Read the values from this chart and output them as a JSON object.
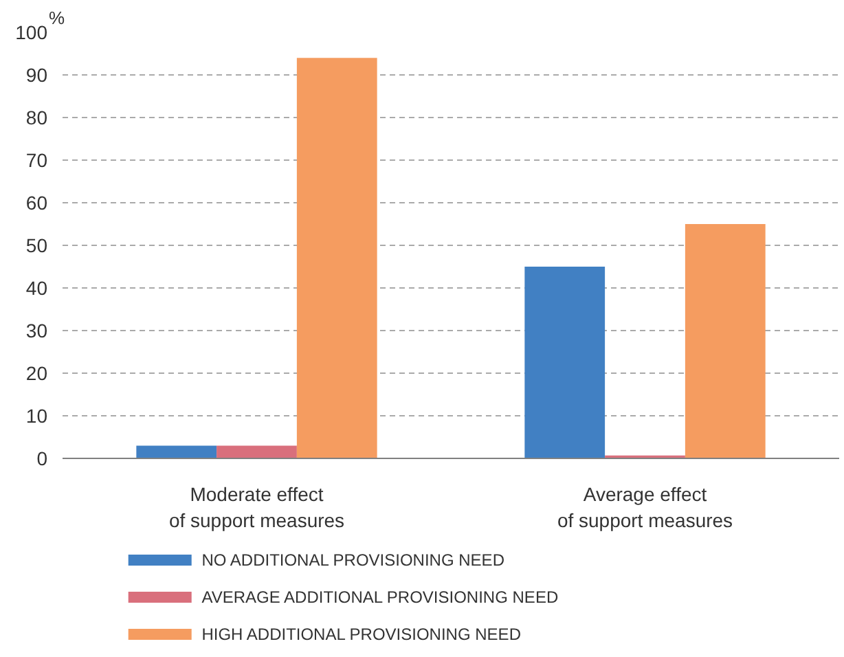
{
  "chart_data": {
    "type": "bar",
    "ylabel": "%",
    "categories": [
      "Moderate effect\nof support measures",
      "Average effect\nof support measures"
    ],
    "series": [
      {
        "name": "NO ADDITIONAL PROVISIONING NEED",
        "color": "#4180c3",
        "values": [
          3,
          45
        ]
      },
      {
        "name": "AVERAGE ADDITIONAL PROVISIONING NEED",
        "color": "#d96f7c",
        "values": [
          3,
          0.7
        ]
      },
      {
        "name": "HIGH ADDITIONAL PROVISIONING NEED",
        "color": "#f59c60",
        "values": [
          94,
          55
        ]
      }
    ],
    "ylim": [
      0,
      100
    ],
    "yticks": [
      0,
      10,
      20,
      30,
      40,
      50,
      60,
      70,
      80,
      90,
      100
    ],
    "grid": "y",
    "legend": "bottom"
  }
}
